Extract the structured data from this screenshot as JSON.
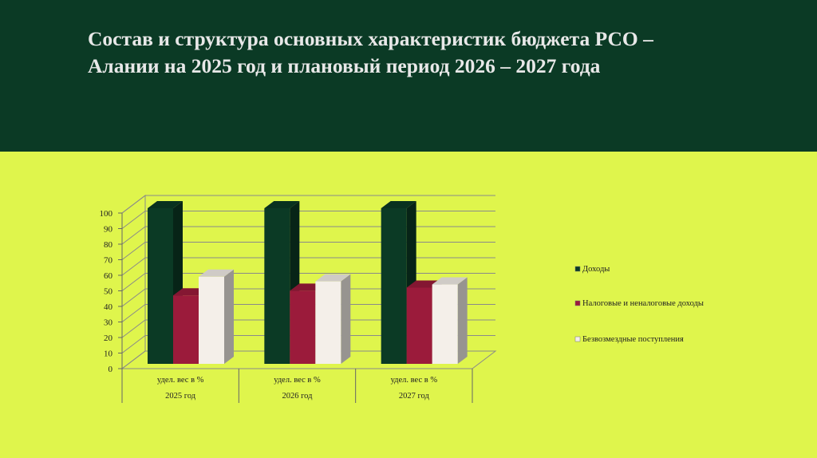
{
  "slide": {
    "title_line1": "Состав и структура основных характеристик бюджета РСО –",
    "title_line2": "Алании на 2025 год и плановый период 2026 – 2027 года"
  },
  "colors": {
    "header_bg": "#0b3a25",
    "content_bg": "#dff54c",
    "title_text": "#e8e8e8"
  },
  "chart_data": {
    "type": "bar",
    "style": "3d-clustered-column",
    "categories": [
      {
        "label": "удел. вес в %",
        "group": "2025 год"
      },
      {
        "label": "удел. вес в %",
        "group": "2026 год"
      },
      {
        "label": "удел. вес в %",
        "group": "2027 год"
      }
    ],
    "series": [
      {
        "name": "Доходы",
        "color": "#0b3a25",
        "values": [
          100,
          100,
          100
        ]
      },
      {
        "name": "Налоговые и неналоговые доходы",
        "color": "#9b1b3b",
        "values": [
          44,
          47,
          49
        ]
      },
      {
        "name": "Безвозмездные поступления",
        "color": "#f4efe9",
        "values": [
          56,
          53,
          51
        ]
      }
    ],
    "ylim": [
      0,
      100
    ],
    "yticks": [
      "0",
      "10",
      "20",
      "30",
      "40",
      "50",
      "60",
      "70",
      "80",
      "90",
      "100"
    ],
    "grid": true,
    "legend_position": "right"
  }
}
